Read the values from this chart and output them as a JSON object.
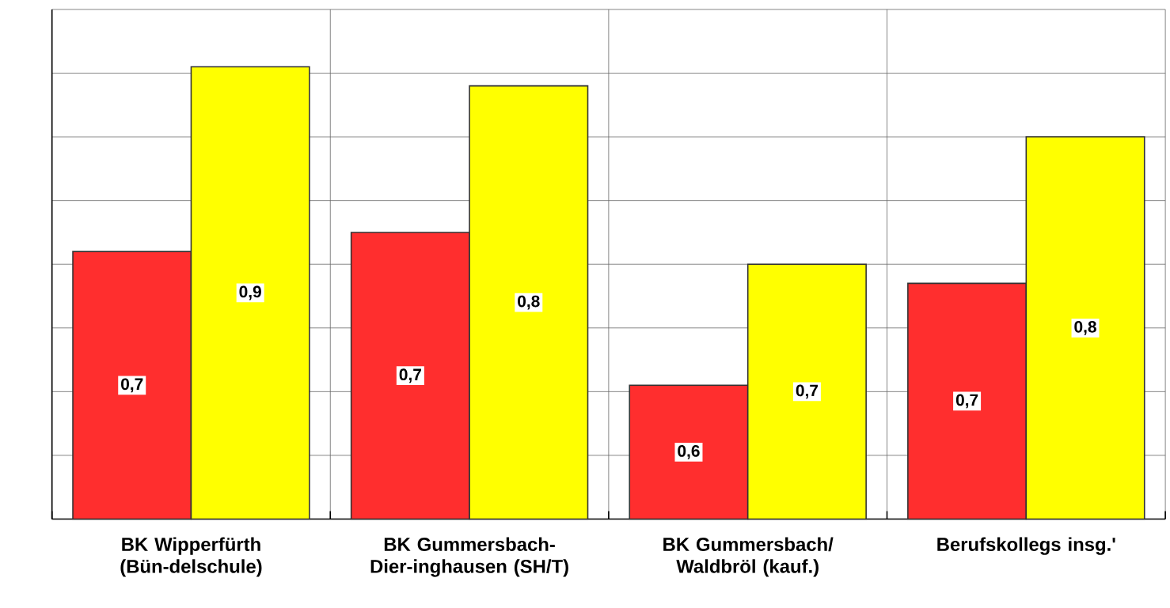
{
  "chart_data": {
    "type": "bar",
    "grid": true,
    "tick_labels": "x",
    "ylim": [
      0.5,
      0.9
    ],
    "yticks": [
      {
        "value": 0.5,
        "label": null
      },
      {
        "value": 0.55,
        "label": null
      },
      {
        "value": 0.6,
        "label": null
      },
      {
        "value": 0.65,
        "label": null
      },
      {
        "value": 0.7,
        "label": null
      },
      {
        "value": 0.75,
        "label": null
      },
      {
        "value": 0.8,
        "label": null
      },
      {
        "value": 0.85,
        "label": null
      },
      {
        "value": 0.9,
        "label": null
      }
    ],
    "categories": [
      "BK Wipperfürth (Bün-delschule)",
      "BK Gummersbach-Dier-inghausen (SH/T)",
      "BK Gummersbach/ Waldbröl (kauf.)",
      "Berufskollegs insg.'"
    ],
    "series": [
      {
        "color": "#ff2e2e",
        "values": [
          0.71,
          0.725,
          0.605,
          0.685
        ],
        "value_labels": [
          "0,7",
          "0,7",
          "0,6",
          "0,7"
        ]
      },
      {
        "color": "#ffff00",
        "values": [
          0.855,
          0.84,
          0.7,
          0.8
        ],
        "value_labels": [
          "0,9",
          "0,8",
          "0,7",
          "0,8"
        ]
      }
    ]
  }
}
